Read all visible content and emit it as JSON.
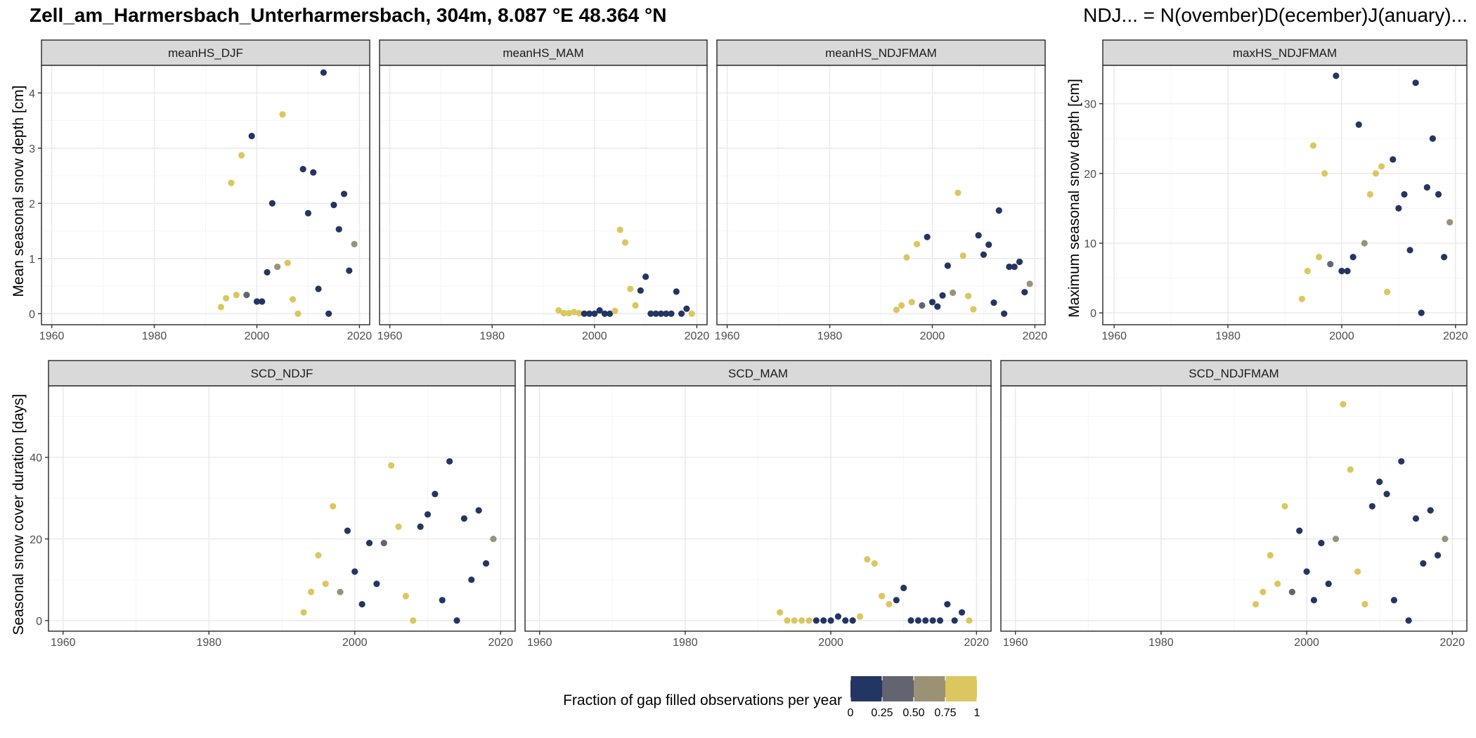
{
  "header": {
    "title": "Zell_am_Harmersbach_Unterharmersbach, 304m, 8.087 °E 48.364 °N",
    "note": "NDJ... = N(ovember)D(ecember)J(anuary)..."
  },
  "colors": {
    "c0": "#233562",
    "c25": "#62646f",
    "c50": "#9b9275",
    "c75": "#dcc65f",
    "strip_bg": "#d9d9d9",
    "grid_major": "#ebebeb",
    "grid_minor": "#f5f5f5",
    "panel_border": "#333333"
  },
  "legend": {
    "title": "Fraction of gap filled observations per year",
    "ticks": [
      "0",
      "0.25",
      "0.50",
      "0.75",
      "1"
    ],
    "colors": [
      "#233562",
      "#62646f",
      "#9b9275",
      "#dcc65f"
    ]
  },
  "chart_data": [
    {
      "type": "scatter",
      "panel": "meanHS_DJF",
      "ylabel": "Mean seasonal snow depth [cm]",
      "xlim": [
        1958,
        2022
      ],
      "ylim": [
        -0.2,
        4.5
      ],
      "xticks": [
        1960,
        1980,
        2000,
        2020
      ],
      "yticks": [
        0,
        1,
        2,
        3,
        4
      ],
      "points": [
        {
          "x": 1993,
          "y": 0.12,
          "f": 1
        },
        {
          "x": 1994,
          "y": 0.28,
          "f": 1
        },
        {
          "x": 1995,
          "y": 2.37,
          "f": 1
        },
        {
          "x": 1996,
          "y": 0.34,
          "f": 1
        },
        {
          "x": 1997,
          "y": 2.87,
          "f": 1
        },
        {
          "x": 1998,
          "y": 0.34,
          "f": 0.25
        },
        {
          "x": 1999,
          "y": 3.22,
          "f": 0
        },
        {
          "x": 2000,
          "y": 0.22,
          "f": 0
        },
        {
          "x": 2001,
          "y": 0.22,
          "f": 0
        },
        {
          "x": 2002,
          "y": 0.75,
          "f": 0
        },
        {
          "x": 2003,
          "y": 2.0,
          "f": 0
        },
        {
          "x": 2004,
          "y": 0.85,
          "f": 0.5
        },
        {
          "x": 2005,
          "y": 3.61,
          "f": 1
        },
        {
          "x": 2006,
          "y": 0.92,
          "f": 1
        },
        {
          "x": 2007,
          "y": 0.26,
          "f": 1
        },
        {
          "x": 2008,
          "y": 0.0,
          "f": 1
        },
        {
          "x": 2009,
          "y": 2.62,
          "f": 0
        },
        {
          "x": 2010,
          "y": 1.82,
          "f": 0
        },
        {
          "x": 2011,
          "y": 2.56,
          "f": 0
        },
        {
          "x": 2012,
          "y": 0.45,
          "f": 0
        },
        {
          "x": 2013,
          "y": 4.37,
          "f": 0
        },
        {
          "x": 2014,
          "y": 0.0,
          "f": 0
        },
        {
          "x": 2015,
          "y": 1.97,
          "f": 0
        },
        {
          "x": 2016,
          "y": 1.53,
          "f": 0
        },
        {
          "x": 2017,
          "y": 2.17,
          "f": 0
        },
        {
          "x": 2018,
          "y": 0.78,
          "f": 0
        },
        {
          "x": 2019,
          "y": 1.26,
          "f": 0.5
        }
      ]
    },
    {
      "type": "scatter",
      "panel": "meanHS_MAM",
      "ylabel": "",
      "xlim": [
        1958,
        2022
      ],
      "ylim": [
        -0.2,
        4.5
      ],
      "xticks": [
        1960,
        1980,
        2000,
        2020
      ],
      "yticks": [],
      "points": [
        {
          "x": 1993,
          "y": 0.06,
          "f": 1
        },
        {
          "x": 1994,
          "y": 0.01,
          "f": 1
        },
        {
          "x": 1995,
          "y": 0.01,
          "f": 1
        },
        {
          "x": 1996,
          "y": 0.03,
          "f": 1
        },
        {
          "x": 1997,
          "y": 0.01,
          "f": 1
        },
        {
          "x": 1998,
          "y": 0.0,
          "f": 0
        },
        {
          "x": 1999,
          "y": 0.0,
          "f": 0
        },
        {
          "x": 2000,
          "y": 0.0,
          "f": 0
        },
        {
          "x": 2001,
          "y": 0.06,
          "f": 0
        },
        {
          "x": 2002,
          "y": 0.0,
          "f": 0
        },
        {
          "x": 2003,
          "y": 0.0,
          "f": 0
        },
        {
          "x": 2004,
          "y": 0.05,
          "f": 1
        },
        {
          "x": 2005,
          "y": 1.52,
          "f": 1
        },
        {
          "x": 2006,
          "y": 1.29,
          "f": 1
        },
        {
          "x": 2007,
          "y": 0.45,
          "f": 1
        },
        {
          "x": 2008,
          "y": 0.15,
          "f": 1
        },
        {
          "x": 2009,
          "y": 0.42,
          "f": 0
        },
        {
          "x": 2010,
          "y": 0.67,
          "f": 0
        },
        {
          "x": 2011,
          "y": 0.0,
          "f": 0
        },
        {
          "x": 2012,
          "y": 0.0,
          "f": 0
        },
        {
          "x": 2013,
          "y": 0.0,
          "f": 0
        },
        {
          "x": 2014,
          "y": 0.0,
          "f": 0
        },
        {
          "x": 2015,
          "y": 0.0,
          "f": 0
        },
        {
          "x": 2016,
          "y": 0.4,
          "f": 0
        },
        {
          "x": 2017,
          "y": 0.0,
          "f": 0
        },
        {
          "x": 2018,
          "y": 0.09,
          "f": 0
        },
        {
          "x": 2019,
          "y": 0.0,
          "f": 1
        }
      ]
    },
    {
      "type": "scatter",
      "panel": "meanHS_NDJFMAM",
      "ylabel": "",
      "xlim": [
        1958,
        2022
      ],
      "ylim": [
        -0.2,
        4.5
      ],
      "xticks": [
        1960,
        1980,
        2000,
        2020
      ],
      "yticks": [],
      "points": [
        {
          "x": 1993,
          "y": 0.07,
          "f": 1
        },
        {
          "x": 1994,
          "y": 0.15,
          "f": 1
        },
        {
          "x": 1995,
          "y": 1.02,
          "f": 1
        },
        {
          "x": 1996,
          "y": 0.21,
          "f": 1
        },
        {
          "x": 1997,
          "y": 1.26,
          "f": 1
        },
        {
          "x": 1998,
          "y": 0.15,
          "f": 0.25
        },
        {
          "x": 1999,
          "y": 1.39,
          "f": 0
        },
        {
          "x": 2000,
          "y": 0.21,
          "f": 0
        },
        {
          "x": 2001,
          "y": 0.13,
          "f": 0
        },
        {
          "x": 2002,
          "y": 0.33,
          "f": 0
        },
        {
          "x": 2003,
          "y": 0.87,
          "f": 0
        },
        {
          "x": 2004,
          "y": 0.38,
          "f": 0.5
        },
        {
          "x": 2005,
          "y": 2.19,
          "f": 1
        },
        {
          "x": 2006,
          "y": 1.05,
          "f": 1
        },
        {
          "x": 2007,
          "y": 0.32,
          "f": 1
        },
        {
          "x": 2008,
          "y": 0.08,
          "f": 1
        },
        {
          "x": 2009,
          "y": 1.42,
          "f": 0
        },
        {
          "x": 2010,
          "y": 1.07,
          "f": 0
        },
        {
          "x": 2011,
          "y": 1.25,
          "f": 0
        },
        {
          "x": 2012,
          "y": 0.2,
          "f": 0
        },
        {
          "x": 2013,
          "y": 1.87,
          "f": 0
        },
        {
          "x": 2014,
          "y": 0.0,
          "f": 0
        },
        {
          "x": 2015,
          "y": 0.85,
          "f": 0
        },
        {
          "x": 2016,
          "y": 0.85,
          "f": 0
        },
        {
          "x": 2017,
          "y": 0.94,
          "f": 0
        },
        {
          "x": 2018,
          "y": 0.39,
          "f": 0
        },
        {
          "x": 2019,
          "y": 0.54,
          "f": 0.5
        }
      ]
    },
    {
      "type": "scatter",
      "panel": "maxHS_NDJFMAM",
      "ylabel": "Maximum seasonal snow depth [cm]",
      "xlim": [
        1958,
        2022
      ],
      "ylim": [
        -1.7,
        35.5
      ],
      "xticks": [
        1960,
        1980,
        2000,
        2020
      ],
      "yticks": [
        0,
        10,
        20,
        30
      ],
      "points": [
        {
          "x": 1993,
          "y": 2,
          "f": 1
        },
        {
          "x": 1994,
          "y": 6,
          "f": 1
        },
        {
          "x": 1995,
          "y": 24,
          "f": 1
        },
        {
          "x": 1996,
          "y": 8,
          "f": 1
        },
        {
          "x": 1997,
          "y": 20,
          "f": 1
        },
        {
          "x": 1998,
          "y": 7,
          "f": 0.25
        },
        {
          "x": 1999,
          "y": 34,
          "f": 0
        },
        {
          "x": 2000,
          "y": 6,
          "f": 0
        },
        {
          "x": 2001,
          "y": 6,
          "f": 0
        },
        {
          "x": 2002,
          "y": 8,
          "f": 0
        },
        {
          "x": 2003,
          "y": 27,
          "f": 0
        },
        {
          "x": 2004,
          "y": 10,
          "f": 0.5
        },
        {
          "x": 2005,
          "y": 17,
          "f": 1
        },
        {
          "x": 2006,
          "y": 20,
          "f": 1
        },
        {
          "x": 2007,
          "y": 21,
          "f": 1
        },
        {
          "x": 2008,
          "y": 3,
          "f": 1
        },
        {
          "x": 2009,
          "y": 22,
          "f": 0
        },
        {
          "x": 2010,
          "y": 15,
          "f": 0
        },
        {
          "x": 2011,
          "y": 17,
          "f": 0
        },
        {
          "x": 2012,
          "y": 9,
          "f": 0
        },
        {
          "x": 2013,
          "y": 33,
          "f": 0
        },
        {
          "x": 2014,
          "y": 0,
          "f": 0
        },
        {
          "x": 2015,
          "y": 18,
          "f": 0
        },
        {
          "x": 2016,
          "y": 25,
          "f": 0
        },
        {
          "x": 2017,
          "y": 17,
          "f": 0
        },
        {
          "x": 2018,
          "y": 8,
          "f": 0
        },
        {
          "x": 2019,
          "y": 13,
          "f": 0.5
        }
      ]
    },
    {
      "type": "scatter",
      "panel": "SCD_NDJF",
      "ylabel": "Seasonal snow cover duration [days]",
      "xlim": [
        1958,
        2022
      ],
      "ylim": [
        -2.6,
        57.5
      ],
      "xticks": [
        1960,
        1980,
        2000,
        2020
      ],
      "yticks": [
        0,
        20,
        40
      ],
      "points": [
        {
          "x": 1993,
          "y": 2,
          "f": 1
        },
        {
          "x": 1994,
          "y": 7,
          "f": 1
        },
        {
          "x": 1995,
          "y": 16,
          "f": 1
        },
        {
          "x": 1996,
          "y": 9,
          "f": 1
        },
        {
          "x": 1997,
          "y": 28,
          "f": 1
        },
        {
          "x": 1998,
          "y": 7,
          "f": 0.5
        },
        {
          "x": 1999,
          "y": 22,
          "f": 0
        },
        {
          "x": 2000,
          "y": 12,
          "f": 0
        },
        {
          "x": 2001,
          "y": 4,
          "f": 0
        },
        {
          "x": 2002,
          "y": 19,
          "f": 0
        },
        {
          "x": 2003,
          "y": 9,
          "f": 0
        },
        {
          "x": 2004,
          "y": 19,
          "f": 0.25
        },
        {
          "x": 2005,
          "y": 38,
          "f": 1
        },
        {
          "x": 2006,
          "y": 23,
          "f": 1
        },
        {
          "x": 2007,
          "y": 6,
          "f": 1
        },
        {
          "x": 2008,
          "y": 0,
          "f": 1
        },
        {
          "x": 2009,
          "y": 23,
          "f": 0
        },
        {
          "x": 2010,
          "y": 26,
          "f": 0
        },
        {
          "x": 2011,
          "y": 31,
          "f": 0
        },
        {
          "x": 2012,
          "y": 5,
          "f": 0
        },
        {
          "x": 2013,
          "y": 39,
          "f": 0
        },
        {
          "x": 2014,
          "y": 0,
          "f": 0
        },
        {
          "x": 2015,
          "y": 25,
          "f": 0
        },
        {
          "x": 2016,
          "y": 10,
          "f": 0
        },
        {
          "x": 2017,
          "y": 27,
          "f": 0
        },
        {
          "x": 2018,
          "y": 14,
          "f": 0
        },
        {
          "x": 2019,
          "y": 20,
          "f": 0.5
        }
      ]
    },
    {
      "type": "scatter",
      "panel": "SCD_MAM",
      "ylabel": "",
      "xlim": [
        1958,
        2022
      ],
      "ylim": [
        -2.6,
        57.5
      ],
      "xticks": [
        1960,
        1980,
        2000,
        2020
      ],
      "yticks": [],
      "points": [
        {
          "x": 1993,
          "y": 2,
          "f": 1
        },
        {
          "x": 1994,
          "y": 0,
          "f": 1
        },
        {
          "x": 1995,
          "y": 0,
          "f": 1
        },
        {
          "x": 1996,
          "y": 0,
          "f": 1
        },
        {
          "x": 1997,
          "y": 0,
          "f": 1
        },
        {
          "x": 1998,
          "y": 0,
          "f": 0
        },
        {
          "x": 1999,
          "y": 0,
          "f": 0
        },
        {
          "x": 2000,
          "y": 0,
          "f": 0
        },
        {
          "x": 2001,
          "y": 1,
          "f": 0
        },
        {
          "x": 2002,
          "y": 0,
          "f": 0
        },
        {
          "x": 2003,
          "y": 0,
          "f": 0
        },
        {
          "x": 2004,
          "y": 1,
          "f": 1
        },
        {
          "x": 2005,
          "y": 15,
          "f": 1
        },
        {
          "x": 2006,
          "y": 14,
          "f": 1
        },
        {
          "x": 2007,
          "y": 6,
          "f": 1
        },
        {
          "x": 2008,
          "y": 4,
          "f": 1
        },
        {
          "x": 2009,
          "y": 5,
          "f": 0
        },
        {
          "x": 2010,
          "y": 8,
          "f": 0
        },
        {
          "x": 2011,
          "y": 0,
          "f": 0
        },
        {
          "x": 2012,
          "y": 0,
          "f": 0
        },
        {
          "x": 2013,
          "y": 0,
          "f": 0
        },
        {
          "x": 2014,
          "y": 0,
          "f": 0
        },
        {
          "x": 2015,
          "y": 0,
          "f": 0
        },
        {
          "x": 2016,
          "y": 4,
          "f": 0
        },
        {
          "x": 2017,
          "y": 0,
          "f": 0
        },
        {
          "x": 2018,
          "y": 2,
          "f": 0
        },
        {
          "x": 2019,
          "y": 0,
          "f": 1
        }
      ]
    },
    {
      "type": "scatter",
      "panel": "SCD_NDJFMAM",
      "ylabel": "",
      "xlim": [
        1958,
        2022
      ],
      "ylim": [
        -2.6,
        57.5
      ],
      "xticks": [
        1960,
        1980,
        2000,
        2020
      ],
      "yticks": [],
      "points": [
        {
          "x": 1993,
          "y": 4,
          "f": 1
        },
        {
          "x": 1994,
          "y": 7,
          "f": 1
        },
        {
          "x": 1995,
          "y": 16,
          "f": 1
        },
        {
          "x": 1996,
          "y": 9,
          "f": 1
        },
        {
          "x": 1997,
          "y": 28,
          "f": 1
        },
        {
          "x": 1998,
          "y": 7,
          "f": 0.25
        },
        {
          "x": 1999,
          "y": 22,
          "f": 0
        },
        {
          "x": 2000,
          "y": 12,
          "f": 0
        },
        {
          "x": 2001,
          "y": 5,
          "f": 0
        },
        {
          "x": 2002,
          "y": 19,
          "f": 0
        },
        {
          "x": 2003,
          "y": 9,
          "f": 0
        },
        {
          "x": 2004,
          "y": 20,
          "f": 0.5
        },
        {
          "x": 2005,
          "y": 53,
          "f": 1
        },
        {
          "x": 2006,
          "y": 37,
          "f": 1
        },
        {
          "x": 2007,
          "y": 12,
          "f": 1
        },
        {
          "x": 2008,
          "y": 4,
          "f": 1
        },
        {
          "x": 2009,
          "y": 28,
          "f": 0
        },
        {
          "x": 2010,
          "y": 34,
          "f": 0
        },
        {
          "x": 2011,
          "y": 31,
          "f": 0
        },
        {
          "x": 2012,
          "y": 5,
          "f": 0
        },
        {
          "x": 2013,
          "y": 39,
          "f": 0
        },
        {
          "x": 2014,
          "y": 0,
          "f": 0
        },
        {
          "x": 2015,
          "y": 25,
          "f": 0
        },
        {
          "x": 2016,
          "y": 14,
          "f": 0
        },
        {
          "x": 2017,
          "y": 27,
          "f": 0
        },
        {
          "x": 2018,
          "y": 16,
          "f": 0
        },
        {
          "x": 2019,
          "y": 20,
          "f": 0.5
        }
      ]
    }
  ]
}
